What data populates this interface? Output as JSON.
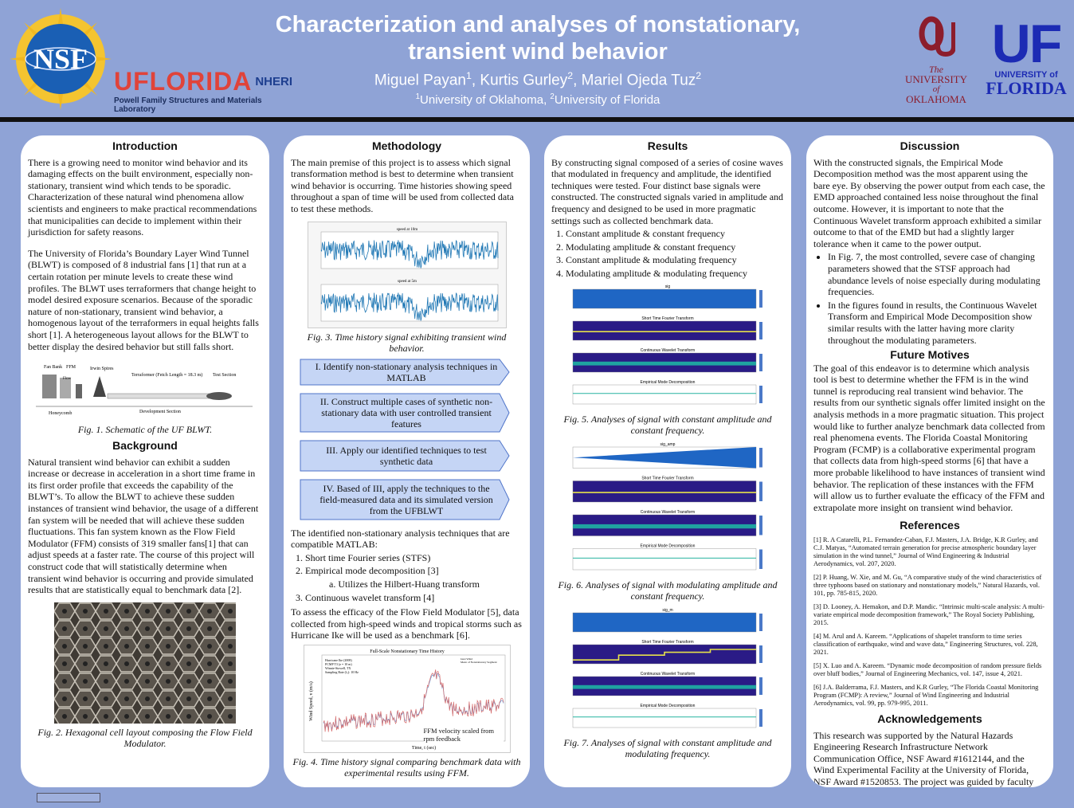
{
  "header": {
    "title_line1": "Characterization and analyses of nonstationary,",
    "title_line2": "transient wind behavior",
    "authors": [
      {
        "name": "Miguel Payan",
        "sup": "1"
      },
      {
        "name": "Kurtis Gurley",
        "sup": "2"
      },
      {
        "name": "Mariel Ojeda Tuz",
        "sup": "2"
      }
    ],
    "affiliations": [
      {
        "sup": "1",
        "name": "University of Oklahoma"
      },
      {
        "sup": "2",
        "name": "University of Florida"
      }
    ],
    "logos": {
      "nsf": "NSF",
      "uflorida": "UFLORIDA",
      "nheri": "NHERI",
      "lab": "Powell Family Structures and Materials Laboratory",
      "ou_the": "The",
      "ou_university": "UNIVERSITY",
      "ou_of": "of",
      "ou_state": "OKLAHOMA",
      "uf_mark": "UF",
      "uf_university": "UNIVERSITY of",
      "uf_state": "FLORIDA"
    }
  },
  "introduction": {
    "heading": "Introduction",
    "p1": "There is a growing need to monitor wind behavior and its damaging effects on the built environment, especially non-stationary, transient wind which tends to be sporadic. Characterization of these natural wind phenomena allow scientists and engineers to make practical recommendations that municipalities can decide to implement within their jurisdiction for safety reasons.",
    "p2": "The University of Florida’s Boundary Layer Wind Tunnel (BLWT) is composed of 8 industrial fans [1] that run at a certain rotation per minute levels to create these wind profiles. The BLWT uses terraformers that change height to model desired exposure scenarios. Because of the sporadic nature of non-stationary, transient wind behavior, a homogenous layout of the terraformers in equal heights falls short [1]. A heterogeneous layout allows for the BLWT to better display the desired behavior but still falls short.",
    "fig1_caption": "Fig. 1. Schematic of the UF BLWT.",
    "fig1_labels": {
      "fan_bank": "Fan Bank",
      "ffm": "FFM",
      "flow": "Flow",
      "irwin": "Irwin Spires",
      "terraformer": "Terraformer (Fetch Length = 18.3 m)",
      "test": "Test Section",
      "honeycomb": "Honeycomb",
      "dev": "Development Section"
    }
  },
  "background": {
    "heading": "Background",
    "p1": "Natural transient wind behavior can exhibit a sudden increase or decrease in acceleration in a short time frame in its first order profile that exceeds the capability of the BLWT’s. To allow the BLWT to achieve these sudden instances of transient wind behavior, the usage of a different fan system will be needed that will achieve these sudden fluctuations. This fan system known as the Flow Field Modulator (FFM) consists of 319 smaller fans[1] that can adjust speeds at a faster rate. The course of this project will construct code that will statistically determine when transient wind behavior is occurring and provide simulated results that are statistically equal to benchmark data [2].",
    "fig2_caption": "Fig. 2. Hexagonal cell layout composing the Flow Field Modulator."
  },
  "methodology": {
    "heading": "Methodology",
    "p1": "The main premise of this project is to assess which signal transformation method is best to determine when transient wind behavior is occurring. Time histories showing speed throughout a span of time will be used from collected data to test these methods.",
    "fig3_titles": [
      "speed at 10m",
      "speed at 5m"
    ],
    "fig3_caption": "Fig. 3. Time history signal exhibiting transient wind behavior.",
    "steps": [
      "I. Identify non-stationary analysis techniques in MATLAB",
      "II. Construct multiple cases of synthetic non-stationary data with user controlled transient features",
      "III. Apply our identified techniques to test synthetic data",
      "IV. Based of III, apply the techniques to the field-measured data and its simulated version from the UFBLWT"
    ],
    "p2": "The identified non-stationary analysis techniques that are compatible MATLAB:",
    "techniques": [
      "Short time Fourier series (STFS)",
      "Empirical mode decomposition [3]",
      "Continuous wavelet transform [4]"
    ],
    "sub_item": "a. Utilizes the Hilbert-Huang transform",
    "p3": "To assess the efficacy of the Flow Field Modulator [5], data collected from high-speed winds and tropical storms such as Hurricane Ike will be used as a benchmark [6].",
    "fig4_title": "Full-Scale Nonstationary Time History",
    "fig4_info": [
      "Hurricane Ike (2008)",
      "FCMP T3 (z = 10 m)",
      "Winnie-Stowell, TX",
      "Sampling Rate (fₛ): 10 Hz"
    ],
    "fig4_legend": [
      "Gust Wind",
      "Mean of Nonstationary Segment"
    ],
    "fig4_ylabel": "Wind Speed, v (m/s)",
    "fig4_xlabel": "Time, t (sec)",
    "fig4_note": "FFM velocity scaled from rpm feedback",
    "fig4_caption": "Fig. 4. Time history signal comparing benchmark data with experimental results using FFM."
  },
  "results": {
    "heading": "Results",
    "p1": "By constructing signal composed of a series of cosine waves that modulated in frequency and amplitude, the identified techniques were tested. Four distinct base signals were constructed. The constructed signals varied in amplitude and frequency and designed to be used in more pragmatic settings such as collected benchmark data.",
    "cases": [
      "Constant amplitude & constant frequency",
      "Modulating amplitude & constant frequency",
      "Constant amplitude & modulating frequency",
      "Modulating amplitude & modulating frequency"
    ],
    "plot_titles": [
      "sig",
      "Short Time Fourier Transform",
      "Continuous Wavelet Transform",
      "Empirical Mode Decomposition"
    ],
    "plot_titles_fig6": [
      "sig_amp",
      "Short Time Fourier Transform",
      "Continuous Wavelet Transform",
      "Empirical Mode Decomposition"
    ],
    "plot_titles_fig7": [
      "sig_m",
      "Short Time Fourier Transform",
      "Continuous Wavelet Transform",
      "Empirical Mode Decomposition"
    ],
    "fig5_caption": "Fig. 5. Analyses of signal with constant amplitude and constant frequency.",
    "fig6_caption": "Fig. 6. Analyses of signal with modulating amplitude and constant frequency.",
    "fig7_caption": "Fig. 7. Analyses of signal with constant amplitude and modulating frequency."
  },
  "discussion": {
    "heading": "Discussion",
    "p1": "With the constructed signals, the Empirical Mode Decomposition method was the most apparent using the bare eye. By observing the power output from each case, the EMD approached contained less noise throughout the final outcome. However, it is important to note that the Continuous Wavelet transform approach exhibited a similar outcome to that of the EMD but had a slightly larger tolerance when it came to the power output.",
    "bullets": [
      "In Fig. 7, the most controlled, severe case of changing parameters showed that the STSF approach had abundance levels of noise especially during modulating frequencies.",
      "In the figures found in results, the Continuous Wavelet Transform and Empirical Mode Decomposition show similar results with the latter having more clarity throughout the modulating parameters."
    ]
  },
  "future": {
    "heading": "Future Motives",
    "p1": "The goal of this endeavor is to determine which analysis tool is best to determine whether the FFM is in the wind tunnel is reproducing real transient wind behavior. The results from our synthetic signals offer limited insight on the analysis methods in a more pragmatic situation. This project would like to further analyze benchmark data collected from real phenomena events. The Florida Coastal Monitoring Program (FCMP) is a collaborative experimental program that collects data from high-speed storms [6] that have a more probable likelihood to have instances of transient wind behavior. The replication of these instances with the FFM will allow us to further evaluate the efficacy of the FFM and extrapolate more insight on transient wind behavior."
  },
  "references": {
    "heading": "References",
    "items": [
      "[1] R. A Catarelli, P.L. Fernandez-Caban, F.J. Masters, J.A. Bridge, K.R Gurley, and C.J. Matyas, “Automated terrain generation for precise atmospheric boundary layer simulation in the wind tunnel,” Journal of Wind Engineering & Industrial Aerodynamics, vol. 207, 2020.",
      "[2] P. Huang, W. Xie, and M. Gu, “A comparative study of the wind characteristics of three typhoons based on stationary and nonstationary models,” Natural Hazards, vol. 101, pp. 785-815, 2020.",
      "[3] D. Looney, A. Hemakon, and D.P. Mandic. “Intrinsic multi-scale analysis: A multi-variate empirical mode decomposition framework,” The Royal Society Publishing, 2015.",
      "[4] M. Arul and A. Kareem. “Applications of shapelet transform to time series classification of earthquake, wind and wave data,” Engineering Structures, vol. 228, 2021.",
      "[5] X. Luo and A. Kareem. “Dynamic mode decomposition of random pressure fields over bluff bodies,” Journal of Engineering Mechanics, vol. 147, issue 4, 2021.",
      "[6] J.A. Balderrama, F.J. Masters, and K.R Gurley, “The Florida Coastal Monitoring Program (FCMP): A review,” Journal of Wind Engineering and Industrial Aerodynamics, vol. 99, pp. 979-995, 2011."
    ]
  },
  "acknowledgements": {
    "heading": "Acknowledgements",
    "p1": "This research was supported by the Natural Hazards Engineering Research Infrastructure Network Communication Office, NSF Award #1612144, and the Wind Experimental Facility at the University of Florida, NSF Award #1520853. The project was guided by faculty mentor, Dr. Kurtis Gurley, Ph.D, and graduate mentor, Mariel Ojeda-Tuz. In addition, the NHERI community support from Dr. Robin Nelson and Dr. Scott Harvey."
  },
  "colors": {
    "background": "#8fa3d6",
    "arrow_fill": "#c5d5f5",
    "arrow_stroke": "#4f74c9",
    "ou_crimson": "#8c1d2c",
    "uf_blue": "#1c2bb4",
    "uflorida_red": "#e0433a",
    "nheri_blue": "#1d3e8f"
  }
}
